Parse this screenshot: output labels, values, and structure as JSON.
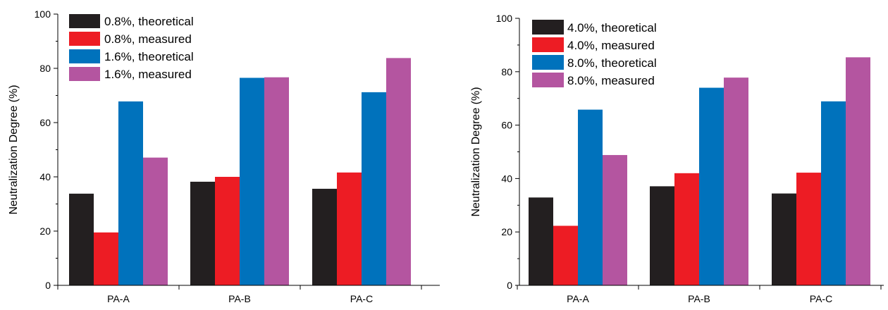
{
  "chart_data": [
    {
      "type": "bar",
      "title": "",
      "xlabel": "",
      "ylabel": "Neutralization Degree (%)",
      "ylim": [
        0,
        100
      ],
      "yticks": [
        0,
        20,
        40,
        60,
        80,
        100
      ],
      "legend_position": "top-left",
      "categories": [
        "PA-A",
        "PA-B",
        "PA-C"
      ],
      "series": [
        {
          "name": "0.8%, theoretical",
          "color": "#231f20",
          "values": [
            33.8,
            38.2,
            35.6
          ]
        },
        {
          "name": "0.8%, measured",
          "color": "#ed1c24",
          "values": [
            19.5,
            40.0,
            41.6
          ]
        },
        {
          "name": "1.6%, theoretical",
          "color": "#0072bc",
          "values": [
            67.8,
            76.5,
            71.2
          ]
        },
        {
          "name": "1.6%, measured",
          "color": "#b455a0",
          "values": [
            47.1,
            76.7,
            83.8
          ]
        }
      ]
    },
    {
      "type": "bar",
      "title": "",
      "xlabel": "",
      "ylabel": "Neutralization Degree (%)",
      "ylim": [
        0,
        100
      ],
      "yticks": [
        0,
        20,
        40,
        60,
        80,
        100
      ],
      "legend_position": "top-left",
      "categories": [
        "PA-A",
        "PA-B",
        "PA-C"
      ],
      "series": [
        {
          "name": "4.0%, theoretical",
          "color": "#231f20",
          "values": [
            32.9,
            37.1,
            34.4
          ]
        },
        {
          "name": "4.0%, measured",
          "color": "#ed1c24",
          "values": [
            22.3,
            42.0,
            42.2
          ]
        },
        {
          "name": "8.0%, theoretical",
          "color": "#0072bc",
          "values": [
            65.8,
            74.0,
            68.9
          ]
        },
        {
          "name": "8.0%, measured",
          "color": "#b455a0",
          "values": [
            48.8,
            77.8,
            85.4
          ]
        }
      ]
    }
  ]
}
